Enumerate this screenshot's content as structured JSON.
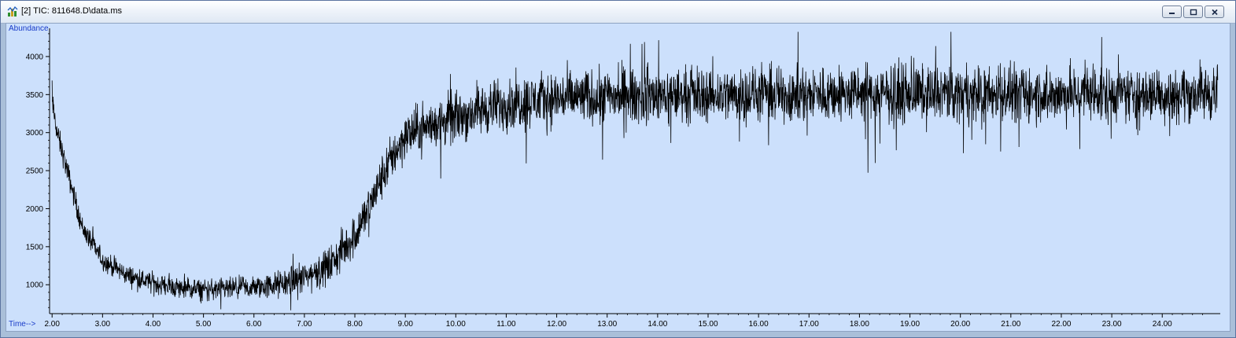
{
  "window": {
    "title": "[2] TIC: 811648.D\\data.ms",
    "icon": "chromatogram-app-icon",
    "buttons": [
      "minimize-icon",
      "maximize-icon",
      "close-icon"
    ],
    "colors": {
      "plot_bg": "#cce0fc",
      "trace": "#000000",
      "axis_title": "#1a3cc8"
    }
  },
  "chart_data": {
    "type": "line",
    "ylabel": "Abundance",
    "xlabel": "Time-->",
    "xlim": [
      1.95,
      25.15
    ],
    "ylim": [
      620,
      4330
    ],
    "xticks": [
      "2.00",
      "3.00",
      "4.00",
      "5.00",
      "6.00",
      "7.00",
      "8.00",
      "9.00",
      "10.00",
      "11.00",
      "12.00",
      "13.00",
      "14.00",
      "15.00",
      "16.00",
      "17.00",
      "18.00",
      "19.00",
      "20.00",
      "21.00",
      "22.00",
      "23.00",
      "24.00"
    ],
    "yticks": [
      "1000",
      "1500",
      "2000",
      "2500",
      "3000",
      "3500",
      "4000"
    ],
    "grid": false,
    "series": [
      {
        "baseline": {
          "x": [
            2.0,
            2.1,
            2.3,
            2.6,
            3.0,
            3.5,
            4.0,
            4.5,
            5.0,
            5.5,
            6.0,
            6.5,
            7.0,
            7.5,
            8.0,
            8.3,
            8.6,
            8.8,
            9.0,
            9.3,
            9.6,
            10.0,
            10.5,
            11.0,
            11.5,
            12.0,
            13.0,
            14.0,
            15.0,
            16.0,
            18.0,
            20.0,
            22.0,
            24.0,
            25.1
          ],
          "y": [
            3400,
            3000,
            2500,
            1750,
            1320,
            1120,
            1020,
            960,
            930,
            940,
            960,
            1000,
            1100,
            1250,
            1650,
            2050,
            2500,
            2750,
            2950,
            3050,
            3120,
            3200,
            3300,
            3380,
            3420,
            3450,
            3470,
            3490,
            3500,
            3500,
            3510,
            3510,
            3500,
            3510,
            3520
          ]
        },
        "noise": {
          "x": [
            2.0,
            3.0,
            6.0,
            8.0,
            9.5,
            12.0,
            25.1
          ],
          "amplitude": [
            150,
            120,
            140,
            260,
            300,
            330,
            340
          ]
        }
      }
    ]
  }
}
